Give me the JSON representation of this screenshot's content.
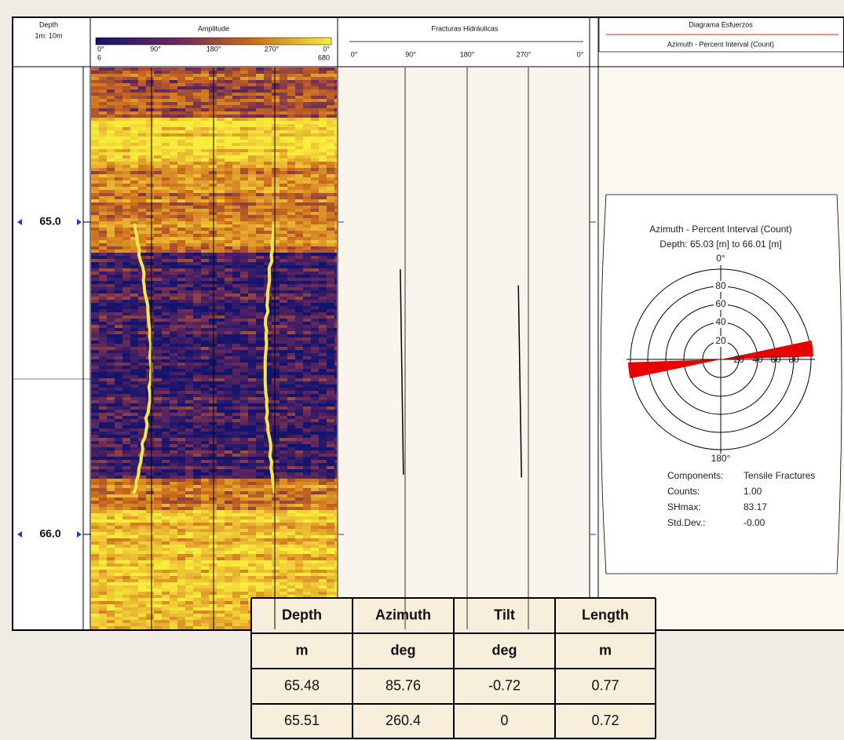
{
  "header": {
    "depth": {
      "title": "Depth",
      "scale": "1m: 10m"
    },
    "amplitude": {
      "title": "Amplitude",
      "azimuth_ticks": [
        "0°",
        "90°",
        "180°",
        "270°",
        "0°"
      ],
      "min": "6",
      "max": "680"
    },
    "fractures": {
      "title": "Fracturas Hidráulicas",
      "azimuth_ticks": [
        "0°",
        "90°",
        "180°",
        "270°",
        "0°"
      ]
    },
    "stress": {
      "title": "Diagrama Esfuerzos",
      "subtitle": "Azimuth - Percent Interval (Count)"
    }
  },
  "depth_labels": [
    "65.0",
    "66.0"
  ],
  "rose": {
    "title": "Azimuth - Percent Interval (Count)",
    "depth": "Depth: 65.03 [m] to 66.01 [m]",
    "north": "0°",
    "south": "180°",
    "ring_labels": [
      "80",
      "60",
      "40",
      "20"
    ],
    "axis_labels": [
      "20",
      "40",
      "60",
      "80"
    ],
    "stats": [
      {
        "label": "Components:",
        "value": "Tensile Fractures"
      },
      {
        "label": "Counts:",
        "value": "1.00"
      },
      {
        "label": "SHmax:",
        "value": "83.17"
      },
      {
        "label": "Std.Dev.:",
        "value": "-0.00"
      }
    ]
  },
  "table": {
    "header": [
      "Depth",
      "Azimuth",
      "Tilt",
      "Length"
    ],
    "units": [
      "m",
      "deg",
      "deg",
      "m"
    ],
    "rows": [
      [
        "65.48",
        "85.76",
        "-0.72",
        "0.77"
      ],
      [
        "65.51",
        "260.4",
        "0",
        "0.72"
      ]
    ]
  }
}
